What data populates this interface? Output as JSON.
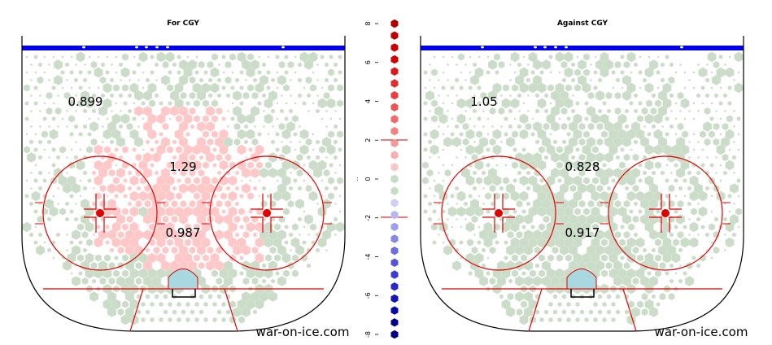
{
  "chart_data": [
    {
      "type": "heatmap",
      "title": "For CGY",
      "watermark": "war-on-ice.com",
      "zones": [
        {
          "label": "0.899",
          "area": "left point"
        },
        {
          "label": "1.29",
          "area": "slot"
        },
        {
          "label": "0.987",
          "area": "crease"
        }
      ],
      "notes": "Hexbin shot-location heat map on an offensive zone, colors show relative shot rate"
    },
    {
      "type": "heatmap",
      "title": "Against CGY",
      "watermark": "war-on-ice.com",
      "zones": [
        {
          "label": "1.05",
          "area": "left point"
        },
        {
          "label": "0.828",
          "area": "slot"
        },
        {
          "label": "0.917",
          "area": "crease"
        }
      ],
      "notes": "Hexbin shot-location heat map on an offensive zone, colors show relative shot rate"
    },
    {
      "type": "scatter",
      "role": "color scale legend",
      "ylim": [
        -8,
        8
      ],
      "ticks": [
        "8",
        "6",
        "4",
        "2",
        "0",
        "-2",
        "-4",
        "-6",
        "-8"
      ],
      "reference_lines": [
        2,
        -2
      ],
      "axis_mark": "..",
      "colors_top_to_bottom": [
        "#b00000",
        "#c00000",
        "#cc0000",
        "#d40000",
        "#dc1a1a",
        "#e22d2d",
        "#e84040",
        "#ec5555",
        "#f06b6b",
        "#f28282",
        "#f49898",
        "#f7b0b0",
        "#f9c6c6",
        "#c5dcc5",
        "#c5dcc5",
        "#cfcff5",
        "#b7b7f0",
        "#9f9feb",
        "#8686e6",
        "#6d6de0",
        "#5555da",
        "#3c3cd3",
        "#2828c8",
        "#1414b8",
        "#0808a0",
        "#000088",
        "#000080"
      ]
    }
  ],
  "colors": {
    "green_hex": "#cbdcc8",
    "pink_hex": "#ffc8c8",
    "crease": "#a8d8e0",
    "rink_red": "#e00000",
    "blue_line": "#0000ee"
  }
}
